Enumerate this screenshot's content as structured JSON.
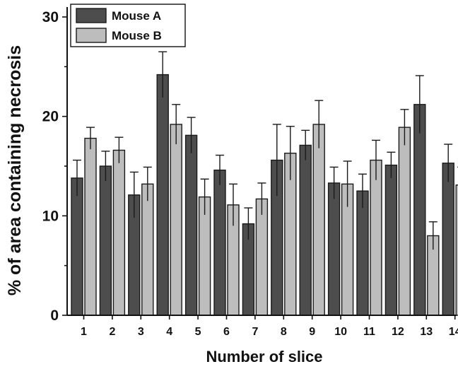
{
  "chart_data": {
    "type": "bar",
    "title": "",
    "xlabel": "Number of slice",
    "ylabel": "% of area containing necrosis",
    "ylim": [
      0,
      30
    ],
    "yticks": [
      0,
      10,
      20,
      30
    ],
    "grid": false,
    "legend_position": "top-left",
    "categories": [
      "1",
      "2",
      "3",
      "4",
      "5",
      "6",
      "7",
      "8",
      "9",
      "10",
      "11",
      "12",
      "13",
      "14"
    ],
    "series": [
      {
        "name": "Mouse A",
        "color": "#4d4d4d",
        "values": [
          13.8,
          15.0,
          12.1,
          24.2,
          18.1,
          14.6,
          9.2,
          15.6,
          17.1,
          13.3,
          12.5,
          15.1,
          21.2,
          15.3
        ],
        "errors": [
          1.8,
          1.5,
          2.3,
          2.3,
          1.8,
          1.5,
          1.6,
          3.6,
          1.5,
          1.6,
          1.7,
          1.3,
          2.9,
          1.9
        ]
      },
      {
        "name": "Mouse B",
        "color": "#bdbdbd",
        "values": [
          17.8,
          16.6,
          13.2,
          19.2,
          11.9,
          11.1,
          11.7,
          16.3,
          19.2,
          13.2,
          15.6,
          18.9,
          8.0,
          13.1
        ],
        "errors": [
          1.1,
          1.3,
          1.7,
          2.0,
          1.8,
          2.1,
          1.6,
          2.7,
          2.4,
          2.3,
          2.0,
          1.8,
          1.4,
          1.8
        ]
      }
    ]
  }
}
